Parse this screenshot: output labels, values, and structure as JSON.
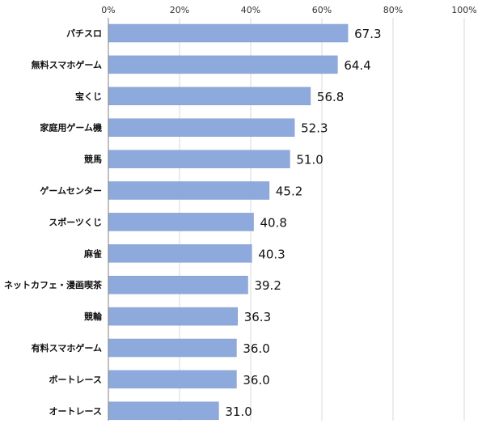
{
  "chart_data": {
    "type": "bar",
    "orientation": "horizontal",
    "categories": [
      "パチスロ",
      "無料スマホゲーム",
      "宝くじ",
      "家庭用ゲーム機",
      "競馬",
      "ゲームセンター",
      "スポーツくじ",
      "麻雀",
      "ネットカフェ・漫画喫茶",
      "競輪",
      "有料スマホゲーム",
      "ボートレース",
      "オートレース"
    ],
    "values": [
      67.3,
      64.4,
      56.8,
      52.3,
      51.0,
      45.2,
      40.8,
      40.3,
      39.2,
      36.3,
      36.0,
      36.0,
      31.0
    ],
    "value_labels": [
      "67.3",
      "64.4",
      "56.8",
      "52.3",
      "51.0",
      "45.2",
      "40.8",
      "40.3",
      "39.2",
      "36.3",
      "36.0",
      "36.0",
      "31.0"
    ],
    "x_ticks": [
      "0%",
      "20%",
      "40%",
      "60%",
      "80%",
      "100%"
    ],
    "xlim": [
      0,
      100
    ],
    "tick_axis_position": "top",
    "grid": true,
    "title": "",
    "xlabel": "",
    "ylabel": "",
    "colors": {
      "bar": "#8ea9db",
      "bar_border": "#7f9ace",
      "grid": "#d9d9d9",
      "axis": "#808080"
    }
  }
}
